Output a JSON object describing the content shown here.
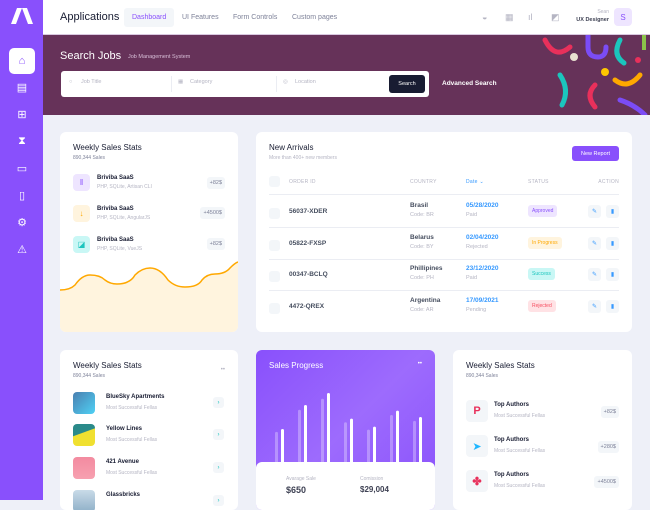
{
  "header": {
    "title": "Applications",
    "nav": [
      "Dashboard",
      "UI Features",
      "Form Controls",
      "Custom pages"
    ],
    "active_nav": "Dashboard",
    "user_name": "Sean",
    "user_role": "UX Designer",
    "avatar_letter": "S"
  },
  "sidebar": {
    "items": [
      "home",
      "clipboard",
      "inbox",
      "hourglass",
      "monitor",
      "document",
      "settings",
      "warning"
    ],
    "active": "home"
  },
  "banner": {
    "title": "Search Jobs",
    "subtitle": "Job Management System",
    "job_title_placeholder": "Job Title",
    "category_placeholder": "Category",
    "location_placeholder": "Location",
    "search_label": "Search",
    "advanced_label": "Advanced Search"
  },
  "weekly1": {
    "title": "Weekly Sales Stats",
    "subtitle": "890,344 Sales",
    "items": [
      {
        "name": "Briviba SaaS",
        "desc": "PHP, SQLite, Artisan CLI",
        "value": "+82$"
      },
      {
        "name": "Briviba SaaS",
        "desc": "PHP, SQLite, AngularJS",
        "value": "+4500$"
      },
      {
        "name": "Briviba SaaS",
        "desc": "PHP, SQLite, VueJS",
        "value": "+82$"
      }
    ]
  },
  "arrivals": {
    "title": "New Arrivals",
    "subtitle": "More than 400+ new members",
    "button": "New Report",
    "columns": [
      "ORDER ID",
      "COUNTRY",
      "Date",
      "STATUS",
      "ACTION"
    ],
    "rows": [
      {
        "id": "56037-XDER",
        "country": "Brasil",
        "code": "Code: BR",
        "date": "05/28/2020",
        "pay": "Paid",
        "status": "Approved"
      },
      {
        "id": "05822-FXSP",
        "country": "Belarus",
        "code": "Code: BY",
        "date": "02/04/2020",
        "pay": "Rejected",
        "status": "In Progress"
      },
      {
        "id": "00347-BCLQ",
        "country": "Phillipines",
        "code": "Code: PH",
        "date": "23/12/2020",
        "pay": "Paid",
        "status": "Success"
      },
      {
        "id": "4472-QREX",
        "country": "Argentina",
        "code": "Code: AR",
        "date": "17/09/2021",
        "pay": "Pending",
        "status": "Rejected"
      }
    ]
  },
  "weekly2": {
    "title": "Weekly Sales Stats",
    "subtitle": "890,344 Sales",
    "items": [
      {
        "name": "BlueSky Apartments",
        "desc": "Most Successful Fellas"
      },
      {
        "name": "Yellow Lines",
        "desc": "Most Successful Fellas"
      },
      {
        "name": "421 Avenue",
        "desc": "Most Successful Fellas"
      },
      {
        "name": "Glassbricks",
        "desc": ""
      }
    ]
  },
  "progress": {
    "title": "Sales Progress",
    "avg_label": "Avarage Sale",
    "avg_value": "$650",
    "com_label": "Comission",
    "com_value": "$29,004",
    "bars": [
      0.45,
      0.75,
      0.9,
      0.58,
      0.48,
      0.68,
      0.6
    ]
  },
  "weekly3": {
    "title": "Weekly Sales Stats",
    "subtitle": "890,344 Sales",
    "items": [
      {
        "name": "Top Authors",
        "desc": "Most Successful Fellas",
        "value": "+82$"
      },
      {
        "name": "Top Authors",
        "desc": "Most Successful Fellas",
        "value": "+280$"
      },
      {
        "name": "Top Authors",
        "desc": "Most Successful Fellas",
        "value": "+4500$"
      }
    ]
  },
  "colors": {
    "primary": "#8950fc",
    "banner": "#663259",
    "info": "#3699ff",
    "warning": "#ffa800"
  }
}
